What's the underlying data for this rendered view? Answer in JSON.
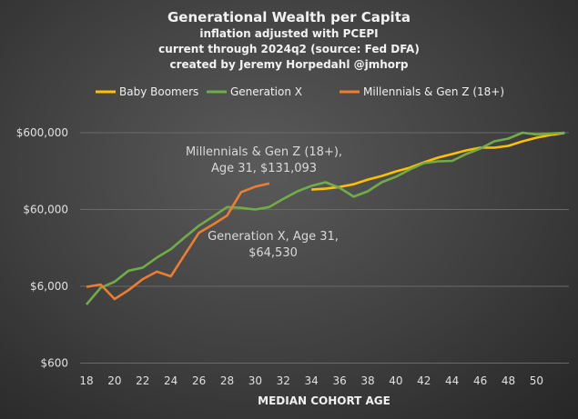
{
  "chart_data": {
    "type": "line",
    "title": "Generational Wealth per Capita",
    "subtitle": [
      "inflation adjusted with PCEPI",
      "current through 2024q2 (source: Fed DFA)",
      "created by Jeremy Horpedahl @jmhorp"
    ],
    "xlabel": "MEDIAN COHORT AGE",
    "ylabel": "",
    "y_scale": "log",
    "ylim": [
      600,
      600000
    ],
    "xlim": [
      18,
      52
    ],
    "x_ticks": [
      18,
      20,
      22,
      24,
      26,
      28,
      30,
      32,
      34,
      36,
      38,
      40,
      42,
      44,
      46,
      48,
      50
    ],
    "y_ticks": [
      {
        "value": 600,
        "label": "$600"
      },
      {
        "value": 6000,
        "label": "$6,000"
      },
      {
        "value": 60000,
        "label": "$60,000"
      },
      {
        "value": 600000,
        "label": "$600,000"
      }
    ],
    "grid": "horizontal",
    "legend": "top",
    "series": [
      {
        "name": "Baby Boomers",
        "color": "#FFC000",
        "x": [
          34,
          35,
          36,
          37,
          38,
          39,
          40,
          41,
          42,
          43,
          44,
          45,
          46,
          47,
          48,
          49,
          50,
          51,
          52
        ],
        "values": [
          109000,
          112000,
          118000,
          128000,
          147000,
          164000,
          188000,
          210000,
          247000,
          284000,
          316000,
          353000,
          383000,
          383000,
          404000,
          463000,
          516000,
          560000,
          595000
        ]
      },
      {
        "name": "Generation X",
        "color": "#70AD47",
        "x": [
          18,
          19,
          20,
          21,
          22,
          23,
          24,
          25,
          26,
          27,
          28,
          29,
          30,
          31,
          32,
          33,
          34,
          35,
          36,
          37,
          38,
          39,
          40,
          41,
          42,
          43,
          44,
          45,
          46,
          47,
          48,
          49,
          50,
          51,
          52
        ],
        "values": [
          3480,
          5730,
          6880,
          9600,
          10500,
          14200,
          18300,
          26100,
          36900,
          48500,
          64500,
          63000,
          60000,
          64530,
          82500,
          103500,
          122000,
          136000,
          115000,
          88000,
          103500,
          136000,
          160000,
          199000,
          241000,
          254000,
          258000,
          316000,
          372000,
          463000,
          503000,
          600000,
          570000,
          585000,
          600000
        ]
      },
      {
        "name": "Millennials & Gen Z (18+)",
        "color": "#ED7D31",
        "x": [
          18,
          19,
          20,
          21,
          22,
          23,
          24,
          25,
          26,
          27,
          28,
          29,
          30,
          31
        ],
        "values": [
          5900,
          6330,
          4100,
          5350,
          7450,
          9300,
          8100,
          15600,
          29900,
          38300,
          50000,
          101000,
          119000,
          131093
        ]
      }
    ],
    "annotations": [
      {
        "lines": [
          "Millennials & Gen Z (18+),",
          "Age 31, $131,093"
        ]
      },
      {
        "lines": [
          "Generation X, Age 31,",
          "$64,530"
        ]
      }
    ]
  }
}
